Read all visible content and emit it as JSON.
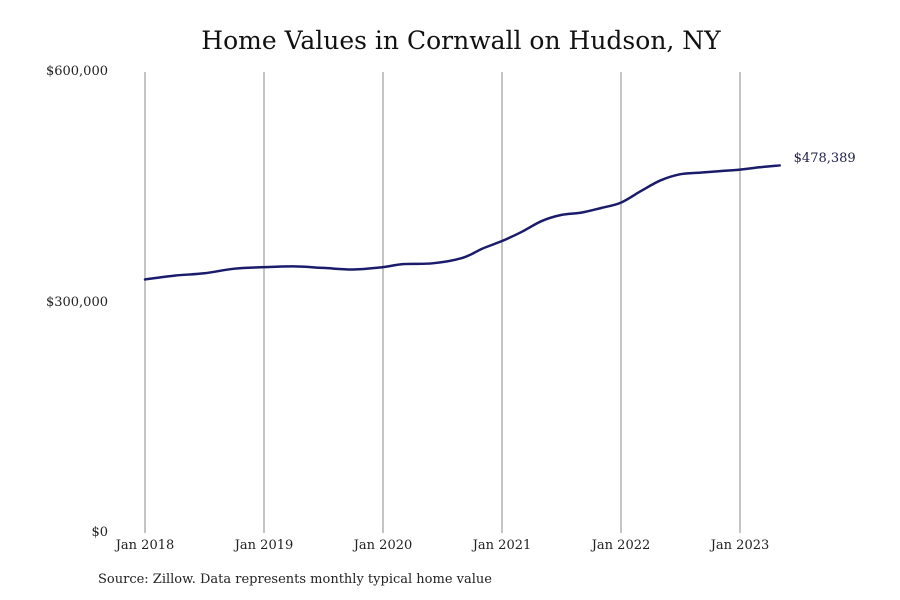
{
  "chart_data": {
    "type": "line",
    "title": "Home Values in Cornwall on Hudson, NY",
    "xlabel": "",
    "ylabel": "",
    "ylim": [
      0,
      600000
    ],
    "y_ticks": [
      {
        "value": 0,
        "label": "$0"
      },
      {
        "value": 300000,
        "label": "$300,000"
      },
      {
        "value": 600000,
        "label": "$600,000"
      }
    ],
    "x_ticks": [
      {
        "date": "2018-01",
        "label": "Jan 2018"
      },
      {
        "date": "2019-01",
        "label": "Jan 2019"
      },
      {
        "date": "2020-01",
        "label": "Jan 2020"
      },
      {
        "date": "2021-01",
        "label": "Jan 2021"
      },
      {
        "date": "2022-01",
        "label": "Jan 2022"
      },
      {
        "date": "2023-01",
        "label": "Jan 2023"
      }
    ],
    "grid": "vertical lines at year ticks",
    "line_color": "#1b1b6b",
    "series": [
      {
        "points": [
          {
            "x": "2018-01",
            "y": 330000
          },
          {
            "x": "2018-04",
            "y": 335000
          },
          {
            "x": "2018-07",
            "y": 338000
          },
          {
            "x": "2018-10",
            "y": 344000
          },
          {
            "x": "2019-01",
            "y": 346000
          },
          {
            "x": "2019-04",
            "y": 347000
          },
          {
            "x": "2019-07",
            "y": 345000
          },
          {
            "x": "2019-10",
            "y": 343000
          },
          {
            "x": "2020-01",
            "y": 346000
          },
          {
            "x": "2020-03",
            "y": 350000
          },
          {
            "x": "2020-06",
            "y": 351000
          },
          {
            "x": "2020-09",
            "y": 358000
          },
          {
            "x": "2020-11",
            "y": 370000
          },
          {
            "x": "2021-01",
            "y": 380000
          },
          {
            "x": "2021-03",
            "y": 392000
          },
          {
            "x": "2021-05",
            "y": 406000
          },
          {
            "x": "2021-07",
            "y": 414000
          },
          {
            "x": "2021-09",
            "y": 417000
          },
          {
            "x": "2021-11",
            "y": 423000
          },
          {
            "x": "2022-01",
            "y": 430000
          },
          {
            "x": "2022-03",
            "y": 445000
          },
          {
            "x": "2022-05",
            "y": 459000
          },
          {
            "x": "2022-07",
            "y": 467000
          },
          {
            "x": "2022-09",
            "y": 469000
          },
          {
            "x": "2022-11",
            "y": 471000
          },
          {
            "x": "2023-01",
            "y": 473000
          },
          {
            "x": "2023-03",
            "y": 476000
          },
          {
            "x": "2023-05",
            "y": 478389
          }
        ]
      }
    ],
    "end_label": "$478,389",
    "source_note": "Source: Zillow. Data represents monthly typical home value"
  }
}
